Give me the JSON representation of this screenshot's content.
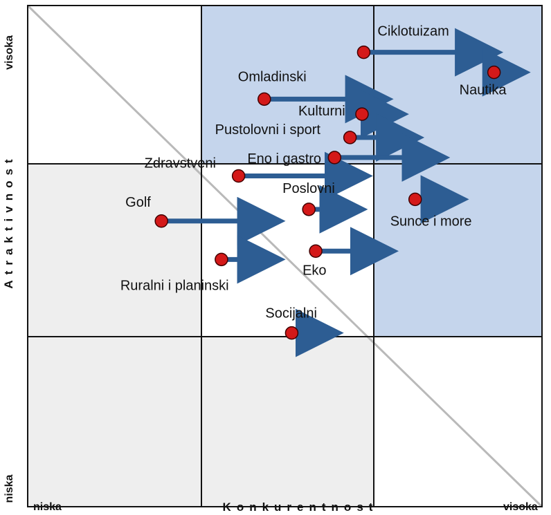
{
  "chart_data": {
    "type": "scatter",
    "xlabel": "Konkurentnost",
    "ylabel": "Atraktivnost",
    "x_min_label": "niska",
    "x_max_label": "visoka",
    "y_min_label": "niska",
    "y_max_label": "visoka",
    "xlim": [
      0,
      3
    ],
    "ylim": [
      0,
      3
    ],
    "grid": "3x3 matrix",
    "colors": {
      "highlight": "#c5d5ec",
      "low": "#eeeeee",
      "neutral": "#ffffff",
      "grid": "#111111",
      "diagonal": "#b9b9b9",
      "point": "#d41919",
      "arrow": "#2d5d93"
    },
    "cells": [
      {
        "col": 0,
        "row": 2,
        "color": "neutral"
      },
      {
        "col": 1,
        "row": 2,
        "color": "highlight"
      },
      {
        "col": 2,
        "row": 2,
        "color": "highlight"
      },
      {
        "col": 0,
        "row": 1,
        "color": "low"
      },
      {
        "col": 1,
        "row": 1,
        "color": "neutral"
      },
      {
        "col": 2,
        "row": 1,
        "color": "highlight"
      },
      {
        "col": 0,
        "row": 0,
        "color": "low"
      },
      {
        "col": 1,
        "row": 0,
        "color": "low"
      },
      {
        "col": 2,
        "row": 0,
        "color": "neutral"
      }
    ],
    "points": [
      {
        "name": "Ciklotuizam",
        "x": 1.96,
        "y": 2.72,
        "x_to": 2.75
      },
      {
        "name": "Nautika",
        "x": 2.72,
        "y": 2.6,
        "x_to": 2.91
      },
      {
        "name": "Omladinski",
        "x": 1.38,
        "y": 2.44,
        "x_to": 2.11
      },
      {
        "name": "Kulturni",
        "x": 1.95,
        "y": 2.35,
        "x_to": 2.2
      },
      {
        "name": "Pustolovni i sport",
        "x": 1.88,
        "y": 2.21,
        "x_to": 2.29
      },
      {
        "name": "Eno i gastro",
        "x": 1.79,
        "y": 2.09,
        "x_to": 2.44
      },
      {
        "name": "Zdravstveni",
        "x": 1.23,
        "y": 1.98,
        "x_to": 1.99
      },
      {
        "name": "Poslovni",
        "x": 1.64,
        "y": 1.78,
        "x_to": 1.96
      },
      {
        "name": "Sunce i more",
        "x": 2.26,
        "y": 1.84,
        "x_to": 2.55
      },
      {
        "name": "Golf",
        "x": 0.78,
        "y": 1.71,
        "x_to": 1.48
      },
      {
        "name": "Eko",
        "x": 1.68,
        "y": 1.53,
        "x_to": 2.14
      },
      {
        "name": "Ruralni i planinski",
        "x": 1.13,
        "y": 1.48,
        "x_to": 1.48
      },
      {
        "name": "Socijalni",
        "x": 1.54,
        "y": 1.04,
        "x_to": 1.82
      }
    ]
  }
}
